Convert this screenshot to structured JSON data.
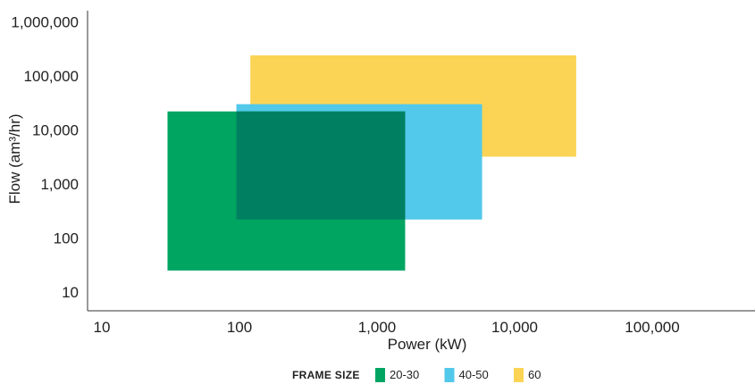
{
  "chart_data": {
    "type": "range-rectangles",
    "xlabel": "Power (kW)",
    "ylabel": "Flow (am³/hr)",
    "x_scale": "log",
    "y_scale": "log",
    "x_ticks": [
      10,
      100,
      1000,
      10000,
      100000
    ],
    "x_tick_labels": [
      "10",
      "100",
      "1,000",
      "10,000",
      "100,000"
    ],
    "y_ticks": [
      10,
      100,
      1000,
      10000,
      100000,
      1000000
    ],
    "y_tick_labels": [
      "10",
      "100",
      "1,000",
      "10,000",
      "100,000",
      "1,000,000"
    ],
    "xlim": [
      10,
      300000
    ],
    "ylim": [
      5,
      1400000
    ],
    "grid": false,
    "legend": {
      "title": "FRAME SIZE",
      "position": "bottom-center"
    },
    "overlap_color": "#008060",
    "series": [
      {
        "name": "20-30",
        "color": "#00a562",
        "x_range": [
          30,
          1600
        ],
        "y_range": [
          25,
          22000
        ]
      },
      {
        "name": "40-50",
        "color": "#52c8ea",
        "x_range": [
          95,
          5800
        ],
        "y_range": [
          220,
          30000
        ]
      },
      {
        "name": "60",
        "color": "#fbd455",
        "x_range": [
          120,
          28000
        ],
        "y_range": [
          3200,
          240000
        ]
      }
    ]
  }
}
